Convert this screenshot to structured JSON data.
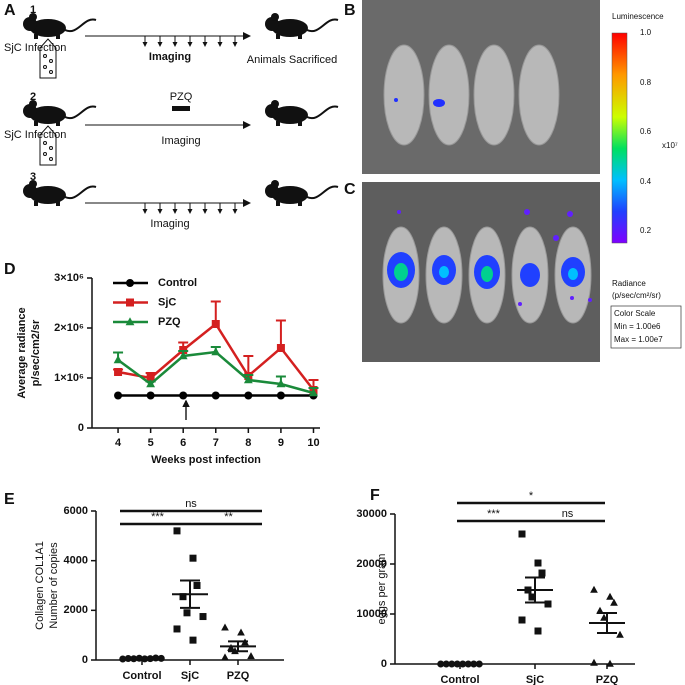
{
  "panels": {
    "a": "A",
    "b": "B",
    "c": "C",
    "d": "D",
    "e": "E",
    "f": "F"
  },
  "diagram": {
    "rows": [
      {
        "number": "1",
        "infection": "SjC Infection",
        "imaging": "Imaging",
        "end": "Animals Sacrificed"
      },
      {
        "number": "2",
        "infection": "SjC Infection",
        "imaging": "Imaging",
        "treatment": "PZQ"
      },
      {
        "number": "3",
        "imaging": "Imaging"
      }
    ]
  },
  "colorbar": {
    "title": "Luminescence",
    "ticks": [
      "1.0",
      "0.8",
      "0.6",
      "0.4",
      "0.2"
    ],
    "exponent": "x10⁷",
    "unit_title": "Radiance",
    "unit": "(p/sec/cm²/sr)",
    "scale_title": "Color Scale",
    "min": "Min = 1.00e6",
    "max": "Max = 1.00e7"
  },
  "chart_data": [
    {
      "type": "line",
      "x": [
        4,
        5,
        6,
        7,
        8,
        9,
        10
      ],
      "xticks": [
        4,
        5,
        6,
        7,
        8,
        9,
        10
      ],
      "xlim": [
        3.2,
        10.2
      ],
      "ylim": [
        0,
        3000000
      ],
      "yticks": [
        0,
        {
          "value": 1000000,
          "label": "1×10⁶"
        },
        {
          "value": 2000000,
          "label": "2×10⁶"
        },
        {
          "value": 3000000,
          "label": "3×10⁶"
        }
      ],
      "xlabel": "Weeks post infection",
      "ylabel": [
        "Average radiance",
        "p/sec/cm2/sr"
      ],
      "series": [
        {
          "name": "Control",
          "color": "#000000",
          "marker": "circle",
          "values": [
            650000,
            650000,
            650000,
            650000,
            650000,
            650000,
            650000
          ],
          "errors": [
            0,
            0,
            0,
            0,
            0,
            0,
            0
          ]
        },
        {
          "name": "SjC",
          "color": "#d42020",
          "marker": "square",
          "values": [
            1120000,
            1000000,
            1560000,
            2080000,
            1040000,
            1600000,
            760000
          ],
          "errors": [
            50000,
            100000,
            150000,
            450000,
            400000,
            550000,
            200000
          ]
        },
        {
          "name": "PZQ",
          "color": "#1a8a3a",
          "marker": "triangle",
          "values": [
            1360000,
            880000,
            1440000,
            1520000,
            960000,
            880000,
            700000
          ],
          "errors": [
            150000,
            50000,
            100000,
            100000,
            100000,
            150000,
            100000
          ]
        }
      ]
    },
    {
      "type": "strip",
      "ylim": [
        0,
        6000
      ],
      "yticks": [
        0,
        2000,
        4000,
        6000
      ],
      "ylabel": [
        "Collagen COL1A1",
        "Number of copies"
      ],
      "groups": [
        {
          "name": "Control",
          "marker": "circle",
          "values": [
            40,
            60,
            50,
            70,
            45,
            55,
            80,
            65
          ],
          "mean": 58,
          "sem": 5
        },
        {
          "name": "SjC",
          "marker": "square",
          "values": [
            5200,
            4100,
            3000,
            2550,
            1900,
            1750,
            1250,
            800
          ],
          "mean": 2650,
          "sem": 550
        },
        {
          "name": "PZQ",
          "marker": "triangle",
          "values": [
            1300,
            1100,
            700,
            480,
            350,
            150,
            100
          ],
          "mean": 550,
          "sem": 200
        }
      ],
      "comparisons": [
        {
          "label": "***"
        },
        {
          "label": "**"
        },
        {
          "label": "ns"
        }
      ]
    },
    {
      "type": "strip",
      "ylim": [
        0,
        30000
      ],
      "yticks": [
        0,
        10000,
        20000,
        30000
      ],
      "ylabel": [
        "eggs per gram"
      ],
      "groups": [
        {
          "name": "Control",
          "marker": "circle",
          "values": [
            0,
            0,
            0,
            0,
            0,
            0,
            0,
            0
          ],
          "mean": 0,
          "sem": 0
        },
        {
          "name": "SjC",
          "marker": "square",
          "values": [
            26000,
            20200,
            18200,
            14800,
            13400,
            12000,
            8800,
            6600
          ],
          "mean": 14800,
          "sem": 2500
        },
        {
          "name": "PZQ",
          "marker": "triangle",
          "values": [
            14800,
            13400,
            12200,
            10600,
            9200,
            5800,
            200,
            0
          ],
          "mean": 8200,
          "sem": 2000
        }
      ],
      "comparisons": [
        {
          "label": "***"
        },
        {
          "label": "ns"
        },
        {
          "label": "*"
        }
      ]
    }
  ]
}
